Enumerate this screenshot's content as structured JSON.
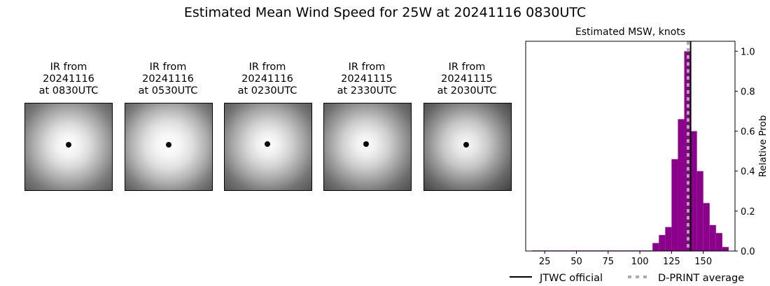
{
  "title": "Estimated Mean Wind Speed for 25W at 20241116 0830UTC",
  "panels": [
    {
      "line1": "IR from",
      "line2": "20241116",
      "line3": "at 0830UTC"
    },
    {
      "line1": "IR from",
      "line2": "20241116",
      "line3": "at 0530UTC"
    },
    {
      "line1": "IR from",
      "line2": "20241116",
      "line3": "at 0230UTC"
    },
    {
      "line1": "IR from",
      "line2": "20241115",
      "line3": "at 2330UTC"
    },
    {
      "line1": "IR from",
      "line2": "20241115",
      "line3": "at 2030UTC"
    }
  ],
  "chart_data": {
    "type": "bar",
    "title": "Estimated MSW, knots",
    "xlabel": "",
    "ylabel": "Relative Prob",
    "xlim": [
      10,
      175
    ],
    "ylim": [
      0,
      1.05
    ],
    "xticks": [
      25,
      50,
      75,
      100,
      125,
      150
    ],
    "yticks": [
      0.0,
      0.2,
      0.4,
      0.6,
      0.8,
      1.0
    ],
    "bin_width": 5,
    "bins": [
      {
        "x": 17.5,
        "value": 0.003
      },
      {
        "x": 22.5,
        "value": 0.003
      },
      {
        "x": 27.5,
        "value": 0.003
      },
      {
        "x": 32.5,
        "value": 0.003
      },
      {
        "x": 37.5,
        "value": 0.003
      },
      {
        "x": 42.5,
        "value": 0.003
      },
      {
        "x": 47.5,
        "value": 0.003
      },
      {
        "x": 52.5,
        "value": 0.003
      },
      {
        "x": 57.5,
        "value": 0.003
      },
      {
        "x": 62.5,
        "value": 0.003
      },
      {
        "x": 67.5,
        "value": 0.003
      },
      {
        "x": 72.5,
        "value": 0.003
      },
      {
        "x": 77.5,
        "value": 0.003
      },
      {
        "x": 82.5,
        "value": 0.003
      },
      {
        "x": 87.5,
        "value": 0.003
      },
      {
        "x": 92.5,
        "value": 0.003
      },
      {
        "x": 97.5,
        "value": 0.003
      },
      {
        "x": 102.5,
        "value": 0.003
      },
      {
        "x": 107.5,
        "value": 0.003
      },
      {
        "x": 112.5,
        "value": 0.04
      },
      {
        "x": 117.5,
        "value": 0.08
      },
      {
        "x": 122.5,
        "value": 0.12
      },
      {
        "x": 127.5,
        "value": 0.46
      },
      {
        "x": 132.5,
        "value": 0.66
      },
      {
        "x": 137.5,
        "value": 1.0
      },
      {
        "x": 142.5,
        "value": 0.6
      },
      {
        "x": 147.5,
        "value": 0.4
      },
      {
        "x": 152.5,
        "value": 0.24
      },
      {
        "x": 157.5,
        "value": 0.13
      },
      {
        "x": 162.5,
        "value": 0.09
      },
      {
        "x": 167.5,
        "value": 0.02
      }
    ],
    "jtwc_official": 140,
    "dprint_average": 138,
    "colors": {
      "bars": "#8b008b",
      "jtwc": "#000000",
      "dprint": "#aaaaaa"
    },
    "legend": {
      "jtwc_label": "JTWC official",
      "dprint_label": "D-PRINT average",
      "position": "bottom"
    }
  }
}
